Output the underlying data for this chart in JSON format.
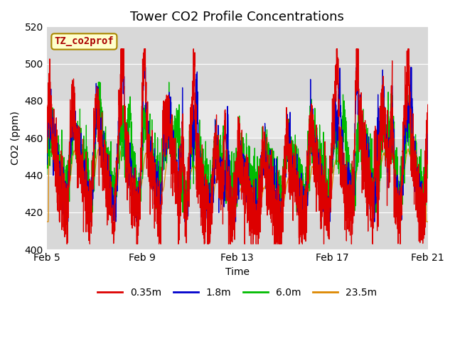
{
  "title": "Tower CO2 Profile Concentrations",
  "xlabel": "Time",
  "ylabel": "CO2 (ppm)",
  "ylim": [
    400,
    520
  ],
  "yticks": [
    400,
    420,
    440,
    460,
    480,
    500,
    520
  ],
  "xlim": [
    0,
    16
  ],
  "xtick_positions": [
    0,
    4,
    8,
    12,
    16
  ],
  "xtick_labels": [
    "Feb 5",
    "Feb 9",
    "Feb 13",
    "Feb 17",
    "Feb 21"
  ],
  "legend_labels": [
    "0.35m",
    "1.8m",
    "6.0m",
    "23.5m"
  ],
  "legend_colors": [
    "#dd0000",
    "#0000cc",
    "#00bb00",
    "#dd8800"
  ],
  "annotation_text": "TZ_co2prof",
  "annotation_color": "#aa0000",
  "annotation_bg": "#ffffcc",
  "annotation_border": "#aa8800",
  "shaded_band_lo": 460,
  "shaded_band_hi": 480,
  "plot_bg": "#d8d8d8",
  "band_color": "#e8e8e8",
  "title_fontsize": 13,
  "axis_fontsize": 10,
  "tick_fontsize": 10,
  "legend_fontsize": 10,
  "figsize": [
    6.4,
    4.8
  ],
  "dpi": 100
}
